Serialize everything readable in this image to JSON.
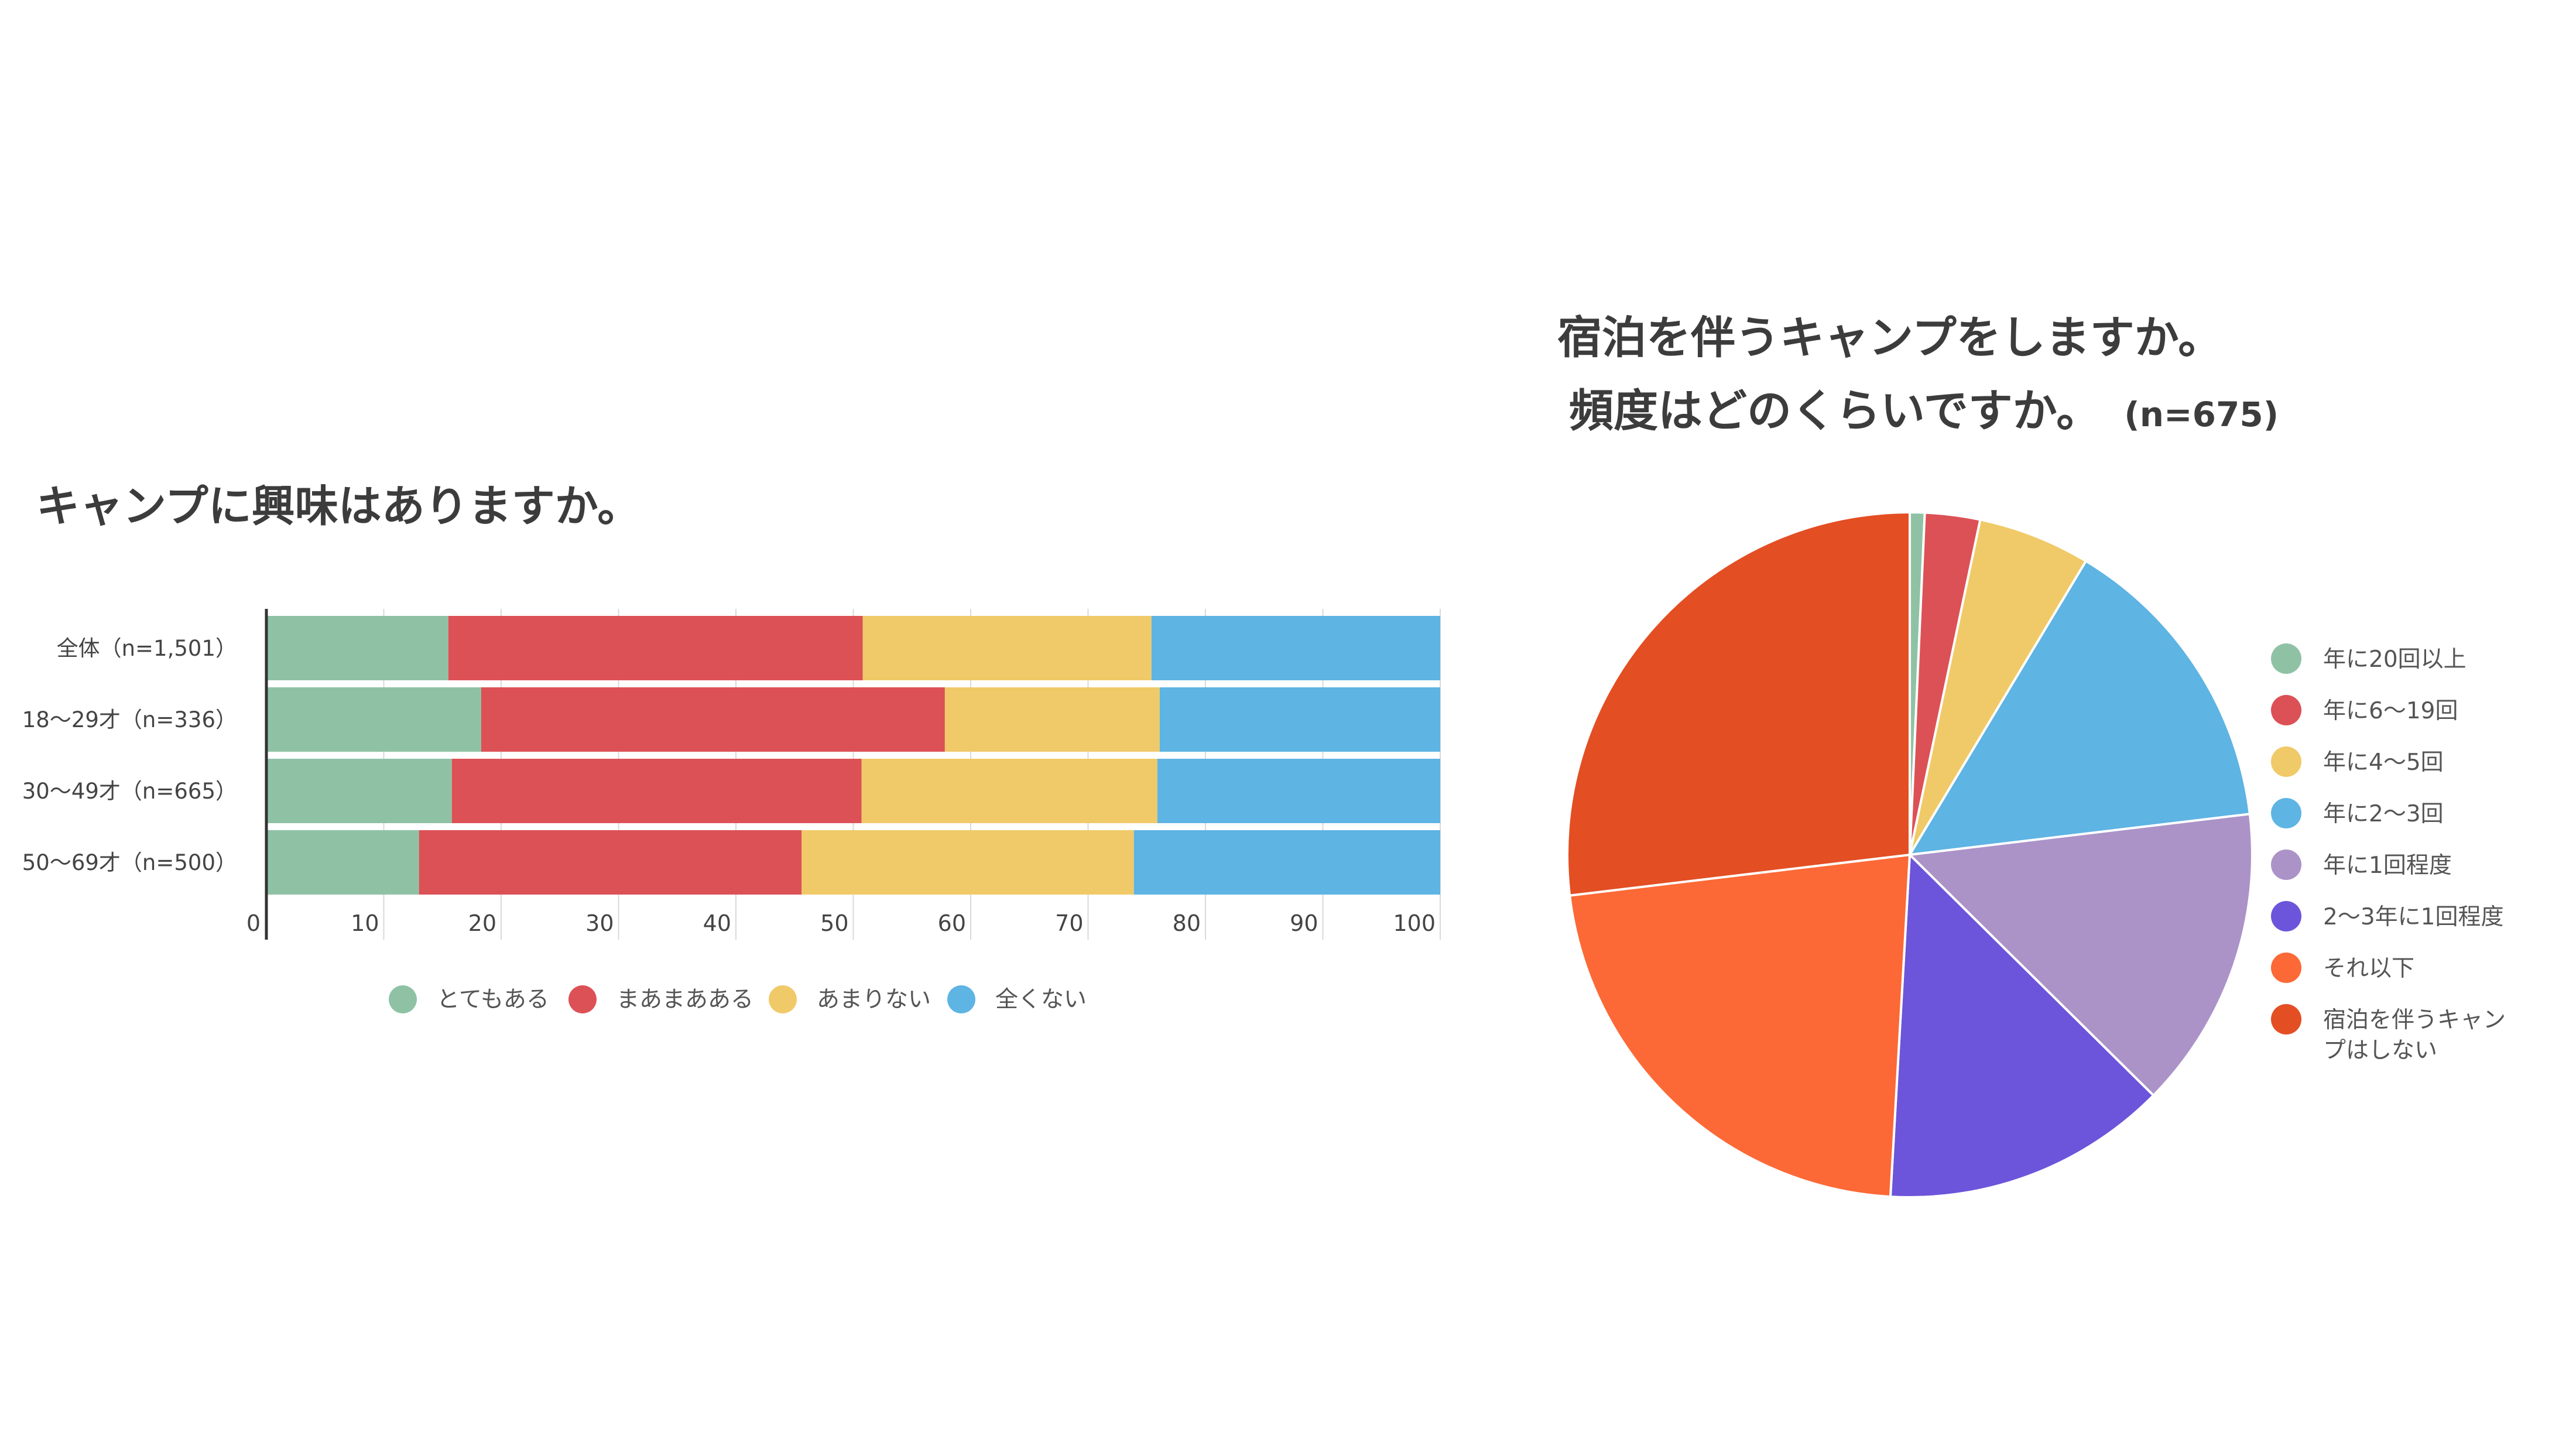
{
  "left_chart": {
    "title": "キャンプに興味はありますか。"
  },
  "right_chart": {
    "title_line1": "宿泊を伴うキャンプをしますか。",
    "title_line2": "頻度はどのくらいですか。",
    "sample_size": "(n=675)"
  },
  "chart_data": [
    {
      "type": "bar",
      "orientation": "horizontal",
      "stacked": true,
      "title": "キャンプに興味はありますか。",
      "categories": [
        "全体（n=1,501）",
        "18〜29才（n=336）",
        "30〜49才（n=665）",
        "50〜69才（n=500）"
      ],
      "series": [
        {
          "name": "とてもある",
          "color": "#8fc2a5",
          "values": [
            15.5,
            18.3,
            15.8,
            13.0
          ]
        },
        {
          "name": "まあまあある",
          "color": "#dc5156",
          "values": [
            35.3,
            39.5,
            34.9,
            32.6
          ]
        },
        {
          "name": "あまりない",
          "color": "#f0ca68",
          "values": [
            24.6,
            18.3,
            25.2,
            28.3
          ]
        },
        {
          "name": "全くない",
          "color": "#5eb4e3",
          "values": [
            24.6,
            23.9,
            24.1,
            26.1
          ]
        }
      ],
      "x_ticks": [
        "0",
        "10",
        "20",
        "30",
        "40",
        "50",
        "60",
        "70",
        "80",
        "90",
        "100"
      ],
      "xlim": [
        0,
        100
      ],
      "grid": true,
      "legend_position": "bottom"
    },
    {
      "type": "pie",
      "title": "宿泊を伴うキャンプをしますか。頻度はどのくらいですか。",
      "sample_size": "(n=675)",
      "slices": [
        {
          "label": "年に20回以上",
          "value": 0.7,
          "color": "#8fc2a5"
        },
        {
          "label": "年に6〜19回",
          "value": 2.6,
          "color": "#dc5156"
        },
        {
          "label": "年に4〜5回",
          "value": 5.3,
          "color": "#f0ca68"
        },
        {
          "label": "年に2〜3回",
          "value": 14.5,
          "color": "#5eb4e3"
        },
        {
          "label": "年に1回程度",
          "value": 14.3,
          "color": "#ab93c8"
        },
        {
          "label": "2〜3年に1回程度",
          "value": 13.5,
          "color": "#6c55da"
        },
        {
          "label": "それ以下",
          "value": 22.2,
          "color": "#fc6936"
        },
        {
          "label": "宿泊を伴うキャンプはしない",
          "value": 26.9,
          "color": "#e34e23"
        }
      ],
      "legend_lines": [
        [
          "年に20回以上"
        ],
        [
          "年に6〜19回"
        ],
        [
          "年に4〜5回"
        ],
        [
          "年に2〜3回"
        ],
        [
          "年に1回程度"
        ],
        [
          "2〜3年に1回程度"
        ],
        [
          "それ以下"
        ],
        [
          "宿泊を伴うキャン",
          "プはしない"
        ]
      ],
      "start_angle": "12 o'clock",
      "direction": "clockwise",
      "legend_position": "right"
    }
  ]
}
